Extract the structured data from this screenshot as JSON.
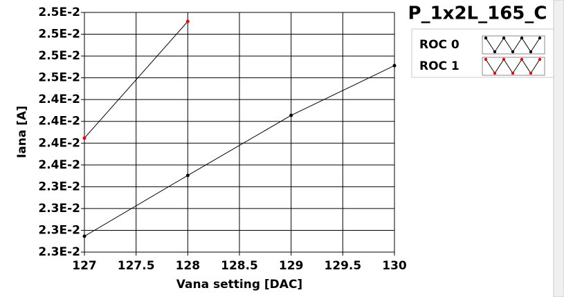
{
  "chart_data": {
    "type": "line",
    "title": "P_1x2L_165_C",
    "x_label": "Vana setting [DAC]",
    "y_label": "Iana [A]",
    "x": [
      127,
      128,
      129,
      130
    ],
    "series": [
      {
        "name": "ROC 0",
        "color": "#000000",
        "values": [
          0.022782,
          0.02348,
          0.024169,
          0.02474
        ]
      },
      {
        "name": "ROC 1",
        "color": "#e00000",
        "values": [
          0.023908,
          0.025247,
          null,
          null
        ]
      }
    ],
    "xlim": [
      127,
      130
    ],
    "xticks": [
      127,
      127.5,
      128,
      128.5,
      129,
      129.5,
      130
    ],
    "ylim": [
      0.0226,
      0.02535
    ],
    "yticks": [
      {
        "value": 0.0226,
        "label": "2.3E-2"
      },
      {
        "value": 0.02285,
        "label": "2.3E-2"
      },
      {
        "value": 0.0231,
        "label": "2.3E-2"
      },
      {
        "value": 0.02335,
        "label": "2.3E-2"
      },
      {
        "value": 0.0236,
        "label": "2.4E-2"
      },
      {
        "value": 0.02385,
        "label": "2.4E-2"
      },
      {
        "value": 0.0241,
        "label": "2.4E-2"
      },
      {
        "value": 0.02435,
        "label": "2.4E-2"
      },
      {
        "value": 0.0246,
        "label": "2.5E-2"
      },
      {
        "value": 0.02485,
        "label": "2.5E-2"
      },
      {
        "value": 0.0251,
        "label": "2.5E-2"
      },
      {
        "value": 0.02535,
        "label": "2.5E-2"
      }
    ],
    "grid": true
  }
}
